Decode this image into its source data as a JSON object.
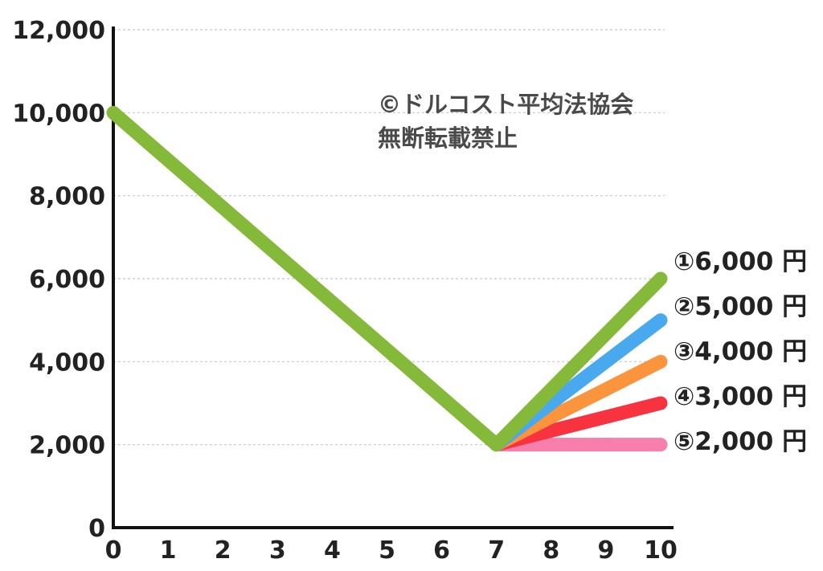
{
  "chart_data": {
    "type": "line",
    "title": "",
    "xlabel": "",
    "ylabel": "",
    "x_ticks": [
      "0",
      "1",
      "2",
      "3",
      "4",
      "5",
      "6",
      "7",
      "8",
      "9",
      "10"
    ],
    "y_ticks": [
      "0",
      "2,000",
      "4,000",
      "6,000",
      "8,000",
      "10,000",
      "12,000"
    ],
    "xlim": [
      0,
      10
    ],
    "ylim": [
      0,
      12000
    ],
    "grid": true,
    "legend": "right-end labels",
    "common_path": {
      "x": [
        0,
        7
      ],
      "y": [
        10000,
        2000
      ],
      "color": "#85b93a"
    },
    "series": [
      {
        "label": "①6,000 円",
        "x": [
          7,
          10
        ],
        "y": [
          2000,
          6000
        ],
        "color": "#85b93a"
      },
      {
        "label": "②5,000 円",
        "x": [
          7,
          10
        ],
        "y": [
          2000,
          5000
        ],
        "color": "#49a9ee"
      },
      {
        "label": "③4,000 円",
        "x": [
          7,
          10
        ],
        "y": [
          2000,
          4000
        ],
        "color": "#fa943d"
      },
      {
        "label": "④3,000 円",
        "x": [
          7,
          10
        ],
        "y": [
          2000,
          3000
        ],
        "color": "#f6333f"
      },
      {
        "label": "⑤2,000 円",
        "x": [
          7,
          10
        ],
        "y": [
          2000,
          2000
        ],
        "color": "#f87fac"
      }
    ],
    "annotations": [
      "©ドルコスト平均法協会",
      "無断転載禁止"
    ]
  }
}
